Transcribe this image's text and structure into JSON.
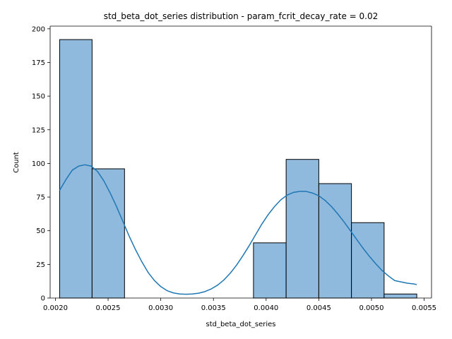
{
  "chart_data": {
    "type": "bar",
    "title": "std_beta_dot_series distribution - param_fcrit_decay_rate = 0.02",
    "xlabel": "std_beta_dot_series",
    "ylabel": "Count",
    "xlim": [
      0.00195,
      0.00557
    ],
    "ylim": [
      0,
      202
    ],
    "xticks": [
      0.002,
      0.0025,
      0.003,
      0.0035,
      0.004,
      0.0045,
      0.005,
      0.0055
    ],
    "xtick_labels": [
      "0.0020",
      "0.0025",
      "0.0030",
      "0.0035",
      "0.0040",
      "0.0045",
      "0.0050",
      "0.0055"
    ],
    "yticks": [
      0,
      25,
      50,
      75,
      100,
      125,
      150,
      175,
      200
    ],
    "ytick_labels": [
      "0",
      "25",
      "50",
      "75",
      "100",
      "125",
      "150",
      "175",
      "200"
    ],
    "bins": [
      {
        "x0": 0.00204,
        "x1": 0.002348,
        "count": 192
      },
      {
        "x0": 0.002348,
        "x1": 0.002656,
        "count": 96
      },
      {
        "x0": 0.00388,
        "x1": 0.00419,
        "count": 41
      },
      {
        "x0": 0.00419,
        "x1": 0.0045,
        "count": 103
      },
      {
        "x0": 0.0045,
        "x1": 0.00481,
        "count": 85
      },
      {
        "x0": 0.00481,
        "x1": 0.00512,
        "count": 56
      },
      {
        "x0": 0.00512,
        "x1": 0.00543,
        "count": 3
      }
    ],
    "kde": {
      "x": [
        0.00204,
        0.0021,
        0.00216,
        0.00222,
        0.00228,
        0.00234,
        0.0024,
        0.00246,
        0.00252,
        0.00258,
        0.00264,
        0.0027,
        0.00276,
        0.00282,
        0.00288,
        0.00294,
        0.003,
        0.00306,
        0.00312,
        0.00318,
        0.00324,
        0.0033,
        0.00336,
        0.00342,
        0.00348,
        0.00354,
        0.0036,
        0.00366,
        0.00372,
        0.00378,
        0.00384,
        0.0039,
        0.00396,
        0.00402,
        0.00408,
        0.00414,
        0.0042,
        0.00426,
        0.00432,
        0.00438,
        0.00444,
        0.0045,
        0.00456,
        0.00462,
        0.00468,
        0.00474,
        0.0048,
        0.00486,
        0.00492,
        0.00498,
        0.00504,
        0.0051,
        0.00516,
        0.00522,
        0.00528,
        0.00534,
        0.0054,
        0.00543
      ],
      "y": [
        80,
        88,
        95,
        98,
        99,
        98,
        94,
        87,
        78,
        68,
        57,
        46,
        36,
        27,
        19,
        13,
        8.5,
        5.5,
        3.8,
        3.0,
        2.8,
        3.0,
        3.6,
        4.8,
        6.8,
        9.6,
        13.5,
        18.5,
        24.5,
        31.5,
        39,
        47,
        55,
        62,
        68,
        73,
        76.5,
        78.5,
        79.2,
        79.2,
        78,
        76,
        72.5,
        68,
        62.5,
        56.5,
        50,
        43.5,
        37,
        31,
        25.5,
        20.5,
        16.5,
        13,
        12,
        11,
        10.5,
        10
      ]
    },
    "colors": {
      "bar_fill": "#8fbadd",
      "bar_edge": "#000000",
      "kde_line": "#1f77b4"
    }
  }
}
